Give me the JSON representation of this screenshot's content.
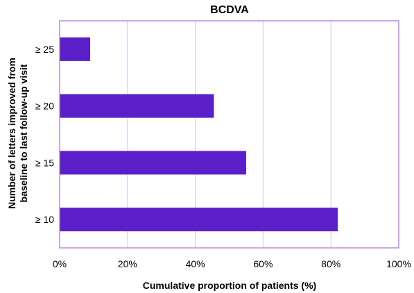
{
  "chart_data": {
    "type": "bar",
    "orientation": "horizontal",
    "title": "BCDVA",
    "xlabel": "Cumulative proportion of patients (%)",
    "ylabel_lines": [
      "Number of letters improved from",
      "baseline to last follow-up visit"
    ],
    "categories": [
      "≥ 25",
      "≥ 20",
      "≥ 15",
      "≥ 10"
    ],
    "values": [
      9,
      45.5,
      55,
      82
    ],
    "xlim": [
      0,
      100
    ],
    "xticks": [
      0,
      20,
      40,
      60,
      80,
      100
    ],
    "xtick_labels": [
      "0%",
      "20%",
      "40%",
      "60%",
      "80%",
      "100%"
    ],
    "grid": true,
    "legend": "none",
    "colors": {
      "bar": "#5a1fc9",
      "frame": "#b58ae6",
      "grid": "#d2c4ec"
    }
  }
}
